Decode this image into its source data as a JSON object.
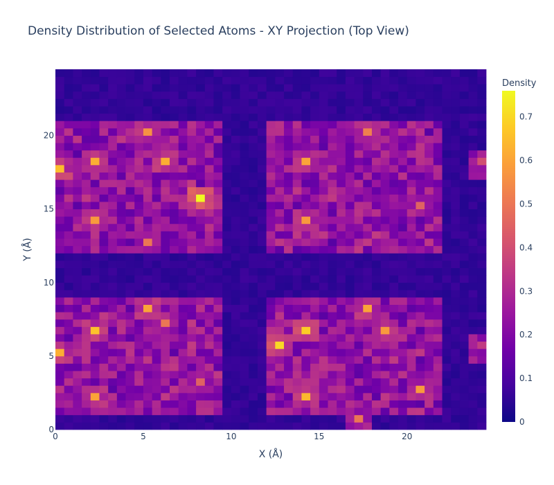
{
  "chart_data": {
    "type": "heatmap",
    "title": "Density Distribution of Selected Atoms - XY Projection (Top View)",
    "xlabel": "X (Å)",
    "ylabel": "Y (Å)",
    "xlim": [
      0,
      24.5
    ],
    "ylim": [
      0,
      24.5
    ],
    "xticks": [
      0,
      5,
      10,
      15,
      20
    ],
    "yticks": [
      0,
      5,
      10,
      15,
      20
    ],
    "colorbar": {
      "title": "Density",
      "range": [
        0,
        0.76
      ],
      "ticks": [
        0,
        0.1,
        0.2,
        0.3,
        0.4,
        0.5,
        0.6,
        0.7
      ],
      "colorscale": [
        "#0d0887",
        "#46039f",
        "#7201a8",
        "#9c179e",
        "#bd3786",
        "#d8576b",
        "#ed7953",
        "#fb9f3a",
        "#fdca26",
        "#f0f921"
      ]
    },
    "grid": {
      "nx": 49,
      "ny": 49,
      "cell_size": 0.5,
      "hotspots": [
        {
          "x": 2.25,
          "y": 18.25,
          "peak": 0.62,
          "note": "upper-left cluster"
        },
        {
          "x": 0.25,
          "y": 17.75,
          "peak": 0.65,
          "note": "upper-left edge"
        },
        {
          "x": 5.25,
          "y": 20.25,
          "peak": 0.56,
          "note": "upper-left cluster"
        },
        {
          "x": 6.25,
          "y": 18.25,
          "peak": 0.62,
          "note": "upper-left cluster"
        },
        {
          "x": 8.25,
          "y": 15.75,
          "peak": 0.76,
          "note": "global maximum"
        },
        {
          "x": 8.25,
          "y": 15.25,
          "peak": 0.45,
          "note": "upper-left cluster"
        },
        {
          "x": 2.25,
          "y": 14.25,
          "peak": 0.58,
          "note": "upper-left cluster"
        },
        {
          "x": 5.25,
          "y": 12.75,
          "peak": 0.5,
          "note": "upper-left cluster"
        },
        {
          "x": 14.25,
          "y": 18.25,
          "peak": 0.6,
          "note": "upper-right cluster"
        },
        {
          "x": 17.75,
          "y": 20.25,
          "peak": 0.52,
          "note": "upper-right cluster"
        },
        {
          "x": 14.25,
          "y": 14.25,
          "peak": 0.58,
          "note": "upper-right cluster"
        },
        {
          "x": 20.75,
          "y": 15.25,
          "peak": 0.45,
          "note": "upper-right cluster"
        },
        {
          "x": 24.25,
          "y": 18.25,
          "peak": 0.4,
          "note": "right edge"
        },
        {
          "x": 2.25,
          "y": 6.75,
          "peak": 0.66,
          "note": "lower-left cluster"
        },
        {
          "x": 5.25,
          "y": 8.25,
          "peak": 0.6,
          "note": "lower-left cluster"
        },
        {
          "x": 6.25,
          "y": 7.25,
          "peak": 0.5,
          "note": "lower-left cluster"
        },
        {
          "x": 0.25,
          "y": 5.25,
          "peak": 0.62,
          "note": "lower-left edge"
        },
        {
          "x": 2.25,
          "y": 2.25,
          "peak": 0.6,
          "note": "lower-left cluster"
        },
        {
          "x": 8.25,
          "y": 3.25,
          "peak": 0.45,
          "note": "lower-left cluster"
        },
        {
          "x": 12.75,
          "y": 5.75,
          "peak": 0.7,
          "note": "lower-right cluster"
        },
        {
          "x": 14.25,
          "y": 6.75,
          "peak": 0.68,
          "note": "lower-right cluster"
        },
        {
          "x": 17.75,
          "y": 8.25,
          "peak": 0.6,
          "note": "lower-right cluster"
        },
        {
          "x": 18.75,
          "y": 6.75,
          "peak": 0.58,
          "note": "lower-right cluster"
        },
        {
          "x": 14.25,
          "y": 2.25,
          "peak": 0.64,
          "note": "lower-right cluster"
        },
        {
          "x": 20.75,
          "y": 2.75,
          "peak": 0.58,
          "note": "lower-right cluster"
        },
        {
          "x": 17.25,
          "y": 0.75,
          "peak": 0.5,
          "note": "lower-right cluster"
        },
        {
          "x": 24.25,
          "y": 5.75,
          "peak": 0.35,
          "note": "right edge"
        }
      ]
    }
  }
}
